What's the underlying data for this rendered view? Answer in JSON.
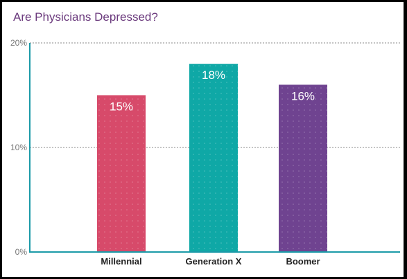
{
  "chart_data": {
    "type": "bar",
    "title": "Are Physicians Depressed?",
    "xlabel": "",
    "ylabel": "",
    "categories": [
      "Millennial",
      "Generation X",
      "Boomer"
    ],
    "values": [
      15,
      18,
      16
    ],
    "value_labels": [
      "15%",
      "18%",
      "16%"
    ],
    "ylim": [
      0,
      20
    ],
    "yticks": [
      0,
      10,
      20
    ],
    "ytick_labels": [
      "0%",
      "10%",
      "20%"
    ],
    "grid": true,
    "legend": "none",
    "colors": [
      "#d74a6a",
      "#0fa8a6",
      "#6f4390"
    ],
    "axis_color": "#1b9aa8",
    "title_color": "#6b3a7d"
  }
}
